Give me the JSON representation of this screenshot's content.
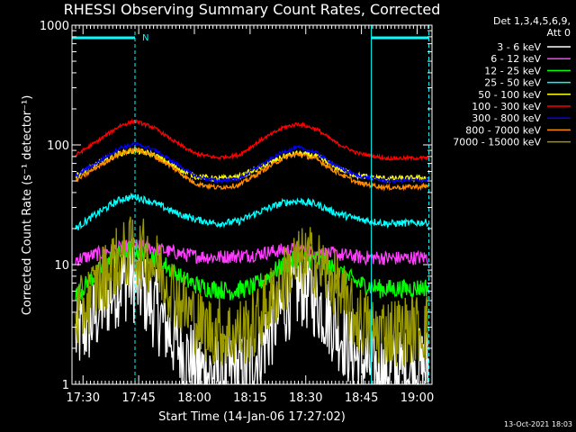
{
  "chart_data": {
    "type": "line",
    "title": "RHESSI Observing Summary Count Rates, Corrected",
    "xlabel": "Start Time (14-Jan-06 17:27:02)",
    "ylabel": "Corrected Count Rate (s⁻¹ detector⁻¹)",
    "yscale": "log",
    "ylim": [
      1,
      1000
    ],
    "xlim": [
      "17:27:02",
      "19:04:00"
    ],
    "x_ticks": [
      "17:30",
      "17:45",
      "18:00",
      "18:15",
      "18:30",
      "18:45",
      "19:00"
    ],
    "y_ticks": [
      {
        "value": 1,
        "label": "1"
      },
      {
        "value": 10,
        "label": "10"
      },
      {
        "value": 100,
        "label": "100"
      },
      {
        "value": 1000,
        "label": "1000"
      }
    ],
    "legend": {
      "placement": "right",
      "header_lines": [
        "Det 1,3,4,5,6,9,",
        "Att 0"
      ]
    },
    "marker_label": "N",
    "series": [
      {
        "name": "3 - 6 keV",
        "color": "#ffffff",
        "noise": 0.35,
        "points": [
          [
            "17:28",
            2.5
          ],
          [
            "17:32",
            3.2
          ],
          [
            "17:36",
            5
          ],
          [
            "17:40",
            7
          ],
          [
            "17:43",
            7.5
          ],
          [
            "17:46",
            6
          ],
          [
            "17:50",
            4
          ],
          [
            "17:54",
            2.5
          ],
          [
            "17:58",
            1.7
          ],
          [
            "18:02",
            1.3
          ],
          [
            "18:08",
            1.2
          ],
          [
            "18:14",
            1.3
          ],
          [
            "18:18",
            2
          ],
          [
            "18:22",
            3.5
          ],
          [
            "18:26",
            5.5
          ],
          [
            "18:29",
            6.5
          ],
          [
            "18:32",
            5.5
          ],
          [
            "18:36",
            3.8
          ],
          [
            "18:40",
            2.5
          ],
          [
            "18:44",
            1.6
          ],
          [
            "18:50",
            1.3
          ],
          [
            "18:56",
            1.3
          ],
          [
            "19:03",
            1.4
          ]
        ]
      },
      {
        "name": "6 - 12 keV",
        "color": "#ff3cff",
        "noise": 0.06,
        "points": [
          [
            "17:28",
            11
          ],
          [
            "17:35",
            12.5
          ],
          [
            "17:43",
            14.5
          ],
          [
            "17:50",
            13.5
          ],
          [
            "17:58",
            12
          ],
          [
            "18:05",
            11.5
          ],
          [
            "18:15",
            12
          ],
          [
            "18:22",
            13
          ],
          [
            "18:28",
            13.5
          ],
          [
            "18:35",
            12.5
          ],
          [
            "18:45",
            11.5
          ],
          [
            "18:55",
            11.3
          ],
          [
            "19:03",
            11.5
          ]
        ]
      },
      {
        "name": "12 - 25 keV",
        "color": "#00ff00",
        "noise": 0.08,
        "points": [
          [
            "17:28",
            5.5
          ],
          [
            "17:33",
            8
          ],
          [
            "17:38",
            11.5
          ],
          [
            "17:43",
            13.5
          ],
          [
            "17:47",
            12.5
          ],
          [
            "17:52",
            10
          ],
          [
            "17:57",
            7.5
          ],
          [
            "18:02",
            6.5
          ],
          [
            "18:10",
            6
          ],
          [
            "18:16",
            6.5
          ],
          [
            "18:22",
            9
          ],
          [
            "18:28",
            11.5
          ],
          [
            "18:33",
            11
          ],
          [
            "18:38",
            9
          ],
          [
            "18:44",
            7
          ],
          [
            "18:50",
            6.3
          ],
          [
            "18:58",
            6.3
          ],
          [
            "19:03",
            6.5
          ]
        ]
      },
      {
        "name": "25 - 50 keV",
        "color": "#00ffff",
        "noise": 0.03,
        "points": [
          [
            "17:28",
            20
          ],
          [
            "17:34",
            27
          ],
          [
            "17:40",
            35
          ],
          [
            "17:44",
            37
          ],
          [
            "17:49",
            33
          ],
          [
            "17:55",
            27
          ],
          [
            "18:00",
            24
          ],
          [
            "18:06",
            22
          ],
          [
            "18:12",
            23
          ],
          [
            "18:18",
            28
          ],
          [
            "18:24",
            33
          ],
          [
            "18:28",
            34
          ],
          [
            "18:33",
            32
          ],
          [
            "18:38",
            27
          ],
          [
            "18:44",
            24
          ],
          [
            "18:52",
            22
          ],
          [
            "19:03",
            22.5
          ]
        ]
      },
      {
        "name": "50 - 100 keV",
        "color": "#ffff00",
        "noise": 0.025,
        "points": [
          [
            "17:28",
            55
          ],
          [
            "17:34",
            70
          ],
          [
            "17:40",
            85
          ],
          [
            "17:44",
            90
          ],
          [
            "17:49",
            83
          ],
          [
            "17:55",
            65
          ],
          [
            "18:00",
            55
          ],
          [
            "18:06",
            52
          ],
          [
            "18:12",
            54
          ],
          [
            "18:18",
            65
          ],
          [
            "18:24",
            80
          ],
          [
            "18:28",
            85
          ],
          [
            "18:33",
            80
          ],
          [
            "18:38",
            65
          ],
          [
            "18:44",
            55
          ],
          [
            "18:52",
            52
          ],
          [
            "19:03",
            53
          ]
        ]
      },
      {
        "name": "100 - 300 keV",
        "color": "#ff0000",
        "noise": 0.015,
        "points": [
          [
            "17:28",
            82
          ],
          [
            "17:34",
            108
          ],
          [
            "17:40",
            145
          ],
          [
            "17:44",
            158
          ],
          [
            "17:49",
            140
          ],
          [
            "17:55",
            105
          ],
          [
            "18:00",
            85
          ],
          [
            "18:06",
            78
          ],
          [
            "18:12",
            82
          ],
          [
            "18:18",
            110
          ],
          [
            "18:24",
            140
          ],
          [
            "18:28",
            150
          ],
          [
            "18:33",
            135
          ],
          [
            "18:38",
            105
          ],
          [
            "18:44",
            85
          ],
          [
            "18:52",
            77
          ],
          [
            "19:03",
            78
          ]
        ]
      },
      {
        "name": "300 - 800 keV",
        "color": "#0000ff",
        "noise": 0.015,
        "points": [
          [
            "17:28",
            55
          ],
          [
            "17:34",
            72
          ],
          [
            "17:40",
            95
          ],
          [
            "17:44",
            102
          ],
          [
            "17:49",
            92
          ],
          [
            "17:55",
            70
          ],
          [
            "18:00",
            55
          ],
          [
            "18:06",
            50
          ],
          [
            "18:12",
            52
          ],
          [
            "18:18",
            68
          ],
          [
            "18:24",
            88
          ],
          [
            "18:28",
            95
          ],
          [
            "18:33",
            86
          ],
          [
            "18:38",
            67
          ],
          [
            "18:44",
            55
          ],
          [
            "18:52",
            50
          ],
          [
            "19:03",
            51
          ]
        ]
      },
      {
        "name": "800 - 7000 keV",
        "color": "#ff8c00",
        "noise": 0.02,
        "points": [
          [
            "17:28",
            50
          ],
          [
            "17:34",
            66
          ],
          [
            "17:40",
            85
          ],
          [
            "17:44",
            92
          ],
          [
            "17:49",
            82
          ],
          [
            "17:55",
            62
          ],
          [
            "18:00",
            48
          ],
          [
            "18:06",
            44
          ],
          [
            "18:12",
            46
          ],
          [
            "18:18",
            60
          ],
          [
            "18:24",
            78
          ],
          [
            "18:28",
            84
          ],
          [
            "18:33",
            76
          ],
          [
            "18:38",
            60
          ],
          [
            "18:44",
            48
          ],
          [
            "18:52",
            44
          ],
          [
            "19:03",
            45
          ]
        ]
      },
      {
        "name": "7000 - 15000 keV",
        "color": "#9a9a00",
        "noise": 0.3,
        "points": [
          [
            "17:28",
            3.5
          ],
          [
            "17:33",
            6
          ],
          [
            "17:38",
            10
          ],
          [
            "17:43",
            13
          ],
          [
            "17:47",
            12
          ],
          [
            "17:52",
            8
          ],
          [
            "17:57",
            4.5
          ],
          [
            "18:02",
            3
          ],
          [
            "18:10",
            2.6
          ],
          [
            "18:16",
            3
          ],
          [
            "18:22",
            6
          ],
          [
            "18:27",
            10
          ],
          [
            "18:32",
            11
          ],
          [
            "18:37",
            7.5
          ],
          [
            "18:42",
            4
          ],
          [
            "18:48",
            2.8
          ],
          [
            "18:56",
            2.8
          ],
          [
            "19:03",
            3
          ]
        ]
      }
    ],
    "vertical_lines": [
      {
        "time": "17:27:02",
        "color": "#00ffff",
        "style": "solid"
      },
      {
        "time": "17:44:00",
        "color": "#00ffff",
        "style": "dashed"
      },
      {
        "time": "18:47:40",
        "color": "#00ffff",
        "style": "solid"
      },
      {
        "time": "19:03:10",
        "color": "#00ffff",
        "style": "dashed"
      }
    ],
    "top_bars": [
      {
        "from": "17:27:02",
        "to": "17:44:00",
        "color": "#00ffff"
      },
      {
        "from": "18:47:40",
        "to": "19:03:10",
        "color": "#00ffff"
      }
    ]
  },
  "footer_date": "13-Oct-2021 18:03"
}
